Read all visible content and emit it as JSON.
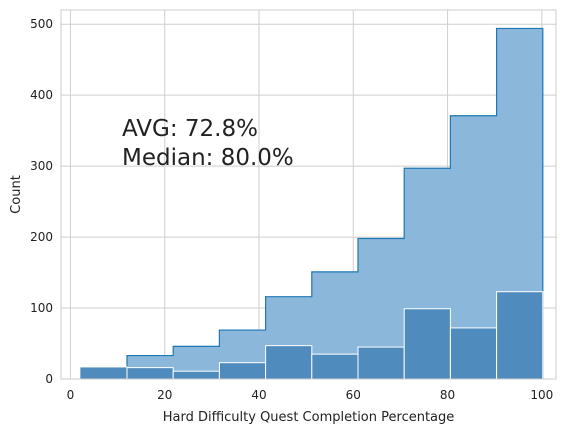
{
  "chart_data": {
    "type": "histogram",
    "xlabel": "Hard Difficulty Quest Completion Percentage",
    "ylabel": "Count",
    "xlim": [
      -2,
      103
    ],
    "ylim": [
      0,
      520
    ],
    "x_ticks": [
      0,
      20,
      40,
      60,
      80,
      100
    ],
    "y_ticks": [
      0,
      100,
      200,
      300,
      400,
      500
    ],
    "grid": true,
    "bin_edges": [
      2,
      12,
      21.8,
      31.6,
      41.4,
      51.2,
      61,
      70.8,
      80.6,
      90.4,
      100.2
    ],
    "series": [
      {
        "style": "step-filled",
        "color": "#1f77b4",
        "fill": "#8bb8da",
        "values": [
          null,
          33,
          46,
          69,
          116,
          151,
          198,
          297,
          371,
          494
        ]
      },
      {
        "style": "bars",
        "color": "#4f8bbd",
        "edge": "#ffffff",
        "values": [
          17,
          16,
          11,
          23,
          47,
          35,
          45,
          99,
          72,
          123
        ]
      }
    ],
    "annotations": [
      "AVG: 72.8%",
      "Median: 80.0%"
    ]
  }
}
